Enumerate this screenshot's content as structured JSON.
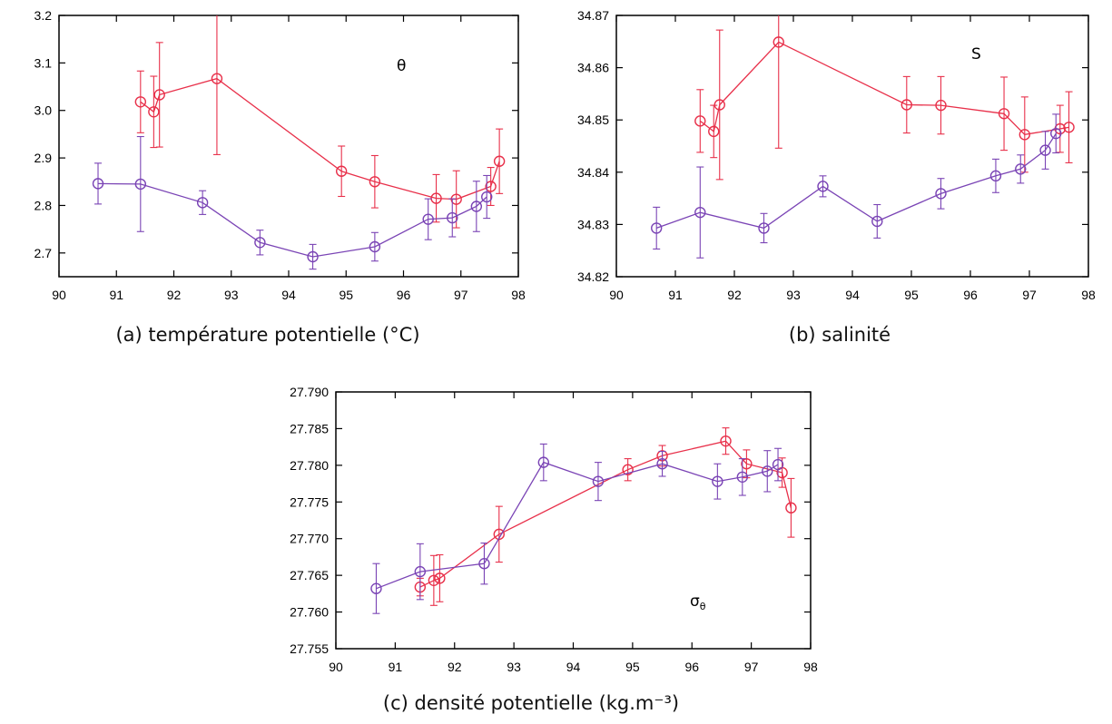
{
  "colors": {
    "red": "#e8304a",
    "purple": "#7a44b5"
  },
  "chart_data": [
    {
      "type": "line",
      "caption": "(a) température potentielle (°C)",
      "annotation": "θ",
      "xlim": [
        90,
        98
      ],
      "ylim": [
        2.65,
        3.2
      ],
      "xticks": [
        90,
        91,
        92,
        93,
        94,
        95,
        96,
        97,
        98
      ],
      "yticks": [
        2.7,
        2.8,
        2.9,
        3.0,
        3.1,
        3.2
      ],
      "ytick_labels": [
        "2.7",
        "2.8",
        "2.9",
        "3.0",
        "3.1",
        "3.2"
      ],
      "series": [
        {
          "color": "red",
          "x": [
            91.42,
            91.65,
            91.75,
            92.75,
            94.92,
            95.5,
            96.57,
            96.92,
            97.52,
            97.67
          ],
          "y": [
            3.018,
            2.997,
            3.033,
            3.067,
            2.872,
            2.85,
            2.815,
            2.813,
            2.84,
            2.893
          ],
          "err": [
            0.065,
            0.075,
            0.11,
            0.16,
            0.053,
            0.055,
            0.05,
            0.06,
            0.04,
            0.068
          ]
        },
        {
          "color": "purple",
          "x": [
            90.68,
            91.42,
            92.5,
            93.5,
            94.42,
            95.5,
            96.43,
            96.85,
            97.27,
            97.45
          ],
          "y": [
            2.846,
            2.845,
            2.806,
            2.722,
            2.692,
            2.713,
            2.771,
            2.774,
            2.798,
            2.818
          ],
          "err": [
            0.043,
            0.1,
            0.025,
            0.026,
            0.026,
            0.03,
            0.043,
            0.04,
            0.053,
            0.045
          ]
        }
      ]
    },
    {
      "type": "line",
      "caption": "(b) salinité",
      "annotation": "S",
      "xlim": [
        90,
        98
      ],
      "ylim": [
        34.82,
        34.87
      ],
      "xticks": [
        90,
        91,
        92,
        93,
        94,
        95,
        96,
        97,
        98
      ],
      "yticks": [
        34.82,
        34.83,
        34.84,
        34.85,
        34.86,
        34.87
      ],
      "ytick_labels": [
        "34.82",
        "34.83",
        "34.84",
        "34.85",
        "34.86",
        "34.87"
      ],
      "series": [
        {
          "color": "red",
          "x": [
            91.42,
            91.65,
            91.75,
            92.75,
            94.92,
            95.5,
            96.57,
            96.92,
            97.52,
            97.67
          ],
          "y": [
            34.8498,
            34.8478,
            34.8529,
            34.8649,
            34.8529,
            34.8528,
            34.8512,
            34.8472,
            34.8483,
            34.8486
          ],
          "err": [
            0.006,
            0.005,
            0.0143,
            0.0203,
            0.0054,
            0.0055,
            0.007,
            0.0072,
            0.0045,
            0.0068
          ]
        },
        {
          "color": "purple",
          "x": [
            90.68,
            91.42,
            92.5,
            93.5,
            94.42,
            95.5,
            96.43,
            96.85,
            97.27,
            97.45
          ],
          "y": [
            34.8293,
            34.8323,
            34.8293,
            34.8373,
            34.8306,
            34.8359,
            34.8393,
            34.8406,
            34.8442,
            34.8474
          ],
          "err": [
            0.004,
            0.0087,
            0.0028,
            0.002,
            0.0032,
            0.0029,
            0.0032,
            0.0027,
            0.0036,
            0.0037
          ]
        }
      ]
    },
    {
      "type": "line",
      "caption": "(c) densité potentielle (kg.m⁻³)",
      "annotation": "σθ",
      "xlim": [
        90,
        98
      ],
      "ylim": [
        27.755,
        27.79
      ],
      "xticks": [
        90,
        91,
        92,
        93,
        94,
        95,
        96,
        97,
        98
      ],
      "yticks": [
        27.755,
        27.76,
        27.765,
        27.77,
        27.775,
        27.78,
        27.785,
        27.79
      ],
      "ytick_labels": [
        "27.755",
        "27.760",
        "27.765",
        "27.770",
        "27.775",
        "27.780",
        "27.785",
        "27.790"
      ],
      "series": [
        {
          "color": "red",
          "x": [
            91.42,
            91.65,
            91.75,
            92.75,
            94.92,
            95.5,
            96.57,
            96.92,
            97.52,
            97.67
          ],
          "y": [
            27.7634,
            27.7643,
            27.7646,
            27.7706,
            27.7794,
            27.7813,
            27.7833,
            27.7802,
            27.779,
            27.7742
          ],
          "err": [
            0.0012,
            0.0034,
            0.0032,
            0.0038,
            0.0015,
            0.0014,
            0.0018,
            0.0019,
            0.002,
            0.004
          ]
        },
        {
          "color": "purple",
          "x": [
            90.68,
            91.42,
            92.5,
            93.5,
            94.42,
            95.5,
            96.43,
            96.85,
            97.27,
            97.45
          ],
          "y": [
            27.7632,
            27.7655,
            27.7666,
            27.7804,
            27.7778,
            27.7802,
            27.7778,
            27.7784,
            27.7792,
            27.7801
          ],
          "err": [
            0.0034,
            0.0038,
            0.0028,
            0.0025,
            0.0026,
            0.0017,
            0.0024,
            0.0025,
            0.0028,
            0.0022
          ]
        }
      ]
    }
  ]
}
